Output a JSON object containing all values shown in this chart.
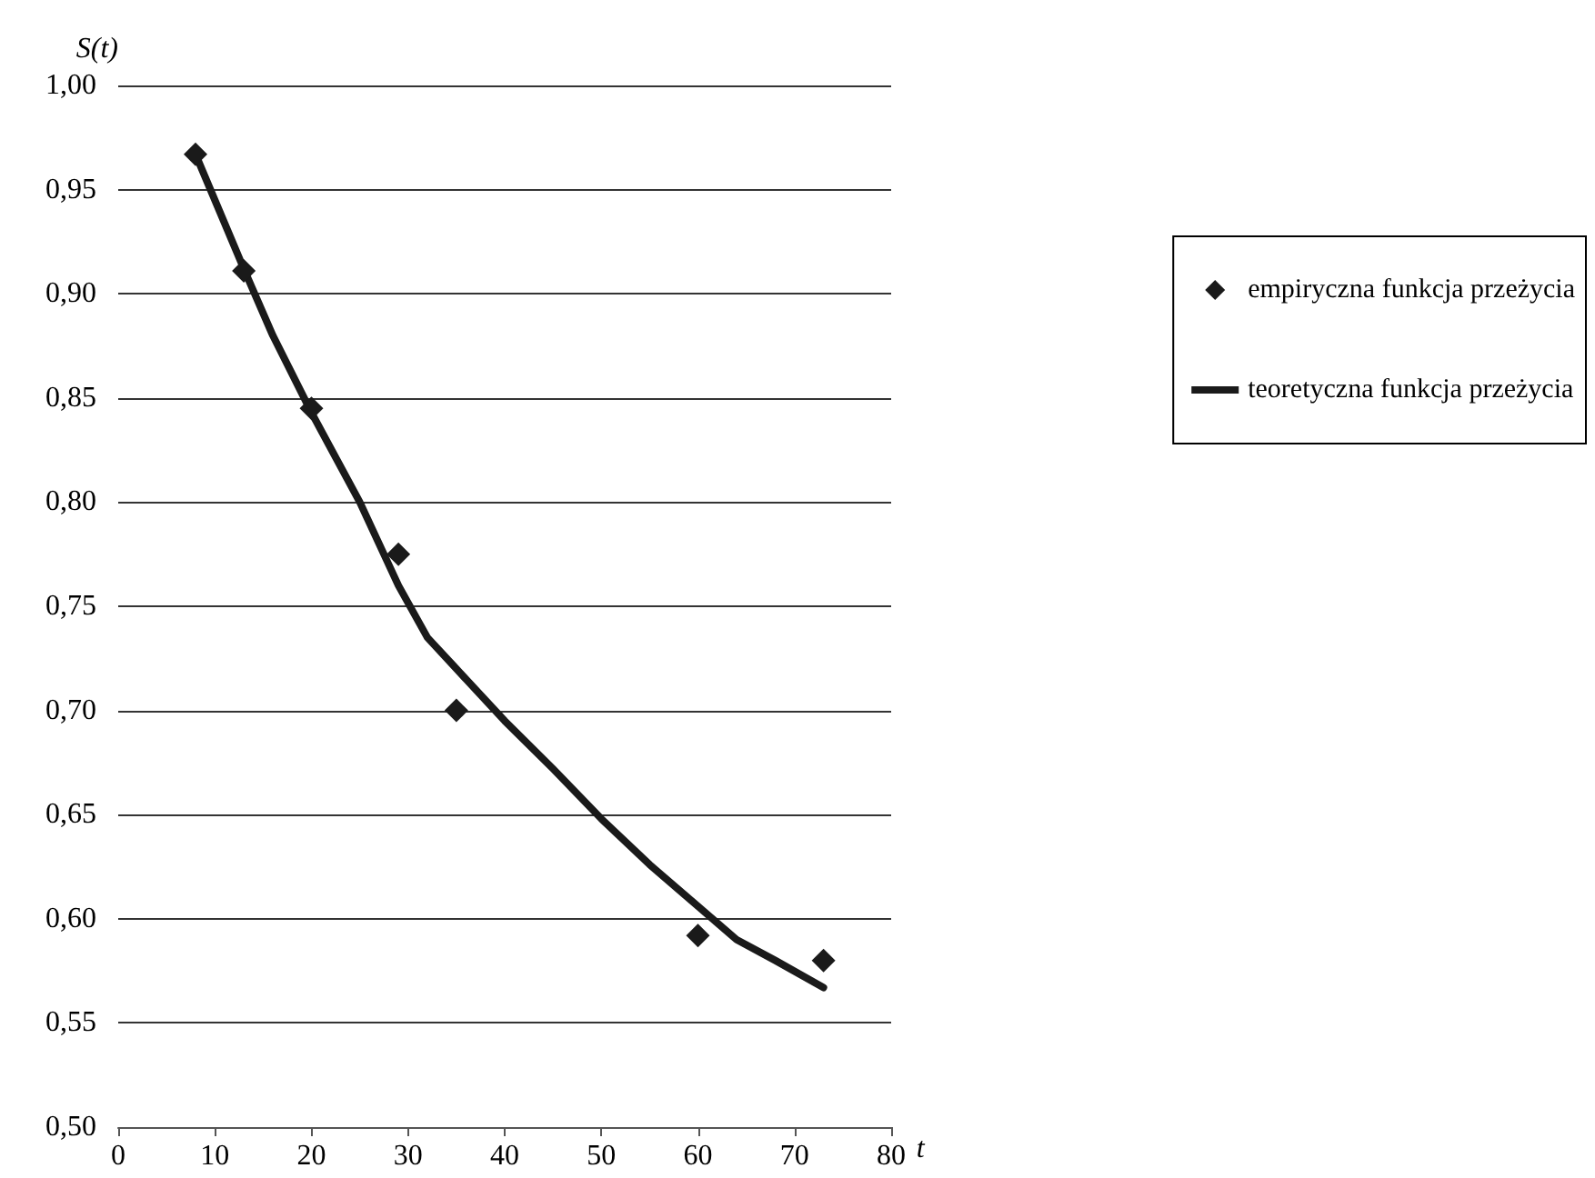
{
  "chart_data": {
    "type": "scatter",
    "xlabel": "t",
    "ylabel": "S(t)",
    "xlim": [
      0,
      80
    ],
    "xticks": [
      0,
      10,
      20,
      30,
      40,
      50,
      60,
      70,
      80
    ],
    "ylim": [
      0.5,
      1.0
    ],
    "yticks": [
      {
        "value": 0.5,
        "label": "0,50"
      },
      {
        "value": 0.55,
        "label": "0,55"
      },
      {
        "value": 0.6,
        "label": "0,60"
      },
      {
        "value": 0.65,
        "label": "0,65"
      },
      {
        "value": 0.7,
        "label": "0,70"
      },
      {
        "value": 0.75,
        "label": "0,75"
      },
      {
        "value": 0.8,
        "label": "0,80"
      },
      {
        "value": 0.85,
        "label": "0,85"
      },
      {
        "value": 0.9,
        "label": "0,90"
      },
      {
        "value": 0.95,
        "label": "0,95"
      },
      {
        "value": 1.0,
        "label": "1,00"
      }
    ],
    "grid": "y",
    "legend": "right",
    "series": [
      {
        "name": "empiryczna funkcja przeżycia",
        "marker": "diamond",
        "color": "#1a1a1a",
        "x": [
          8,
          13,
          20,
          29,
          35,
          60,
          73
        ],
        "values": [
          0.967,
          0.911,
          0.845,
          0.775,
          0.7,
          0.592,
          0.58
        ]
      },
      {
        "name": "teoretyczna funkcja przeżycia",
        "type": "line",
        "marker": "none",
        "line_style": "solid",
        "color": "#1a1a1a",
        "x": [
          8,
          13,
          16,
          20,
          25,
          29,
          32,
          35,
          40,
          45,
          50,
          55,
          60,
          64,
          68,
          73
        ],
        "values": [
          0.967,
          0.912,
          0.88,
          0.843,
          0.8,
          0.76,
          0.735,
          0.72,
          0.695,
          0.672,
          0.648,
          0.626,
          0.606,
          0.59,
          0.58,
          0.567
        ]
      }
    ]
  }
}
